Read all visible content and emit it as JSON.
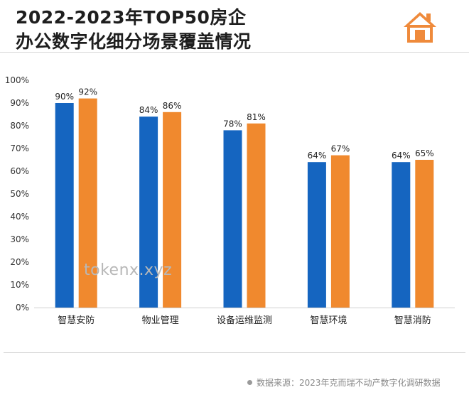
{
  "title_line1": "2022-2023年TOP50房企",
  "title_line2": "办公数字化细分场景覆盖情况",
  "icon": "house-icon",
  "watermark": "tokenx.xyz",
  "source": "数据来源：2023年克而瑞不动产数字化调研数据",
  "colors": {
    "series_2022": "#1565c0",
    "series_2023": "#f0892e",
    "icon": "#ef8a3b"
  },
  "chart_data": {
    "type": "bar",
    "categories": [
      "智慧安防",
      "物业管理",
      "设备运维监测",
      "智慧环境",
      "智慧消防"
    ],
    "series": [
      {
        "values": [
          90,
          84,
          78,
          64,
          64
        ],
        "labels": [
          "90%",
          "84%",
          "78%",
          "64%",
          "64%"
        ]
      },
      {
        "values": [
          92,
          86,
          81,
          67,
          65
        ],
        "labels": [
          "92%",
          "86%",
          "81%",
          "67%",
          "65%"
        ]
      }
    ],
    "yticks": [
      "0%",
      "10%",
      "20%",
      "30%",
      "40%",
      "50%",
      "60%",
      "70%",
      "80%",
      "90%",
      "100%"
    ],
    "ylim": [
      0,
      100
    ],
    "grid": false,
    "legend": "none"
  }
}
